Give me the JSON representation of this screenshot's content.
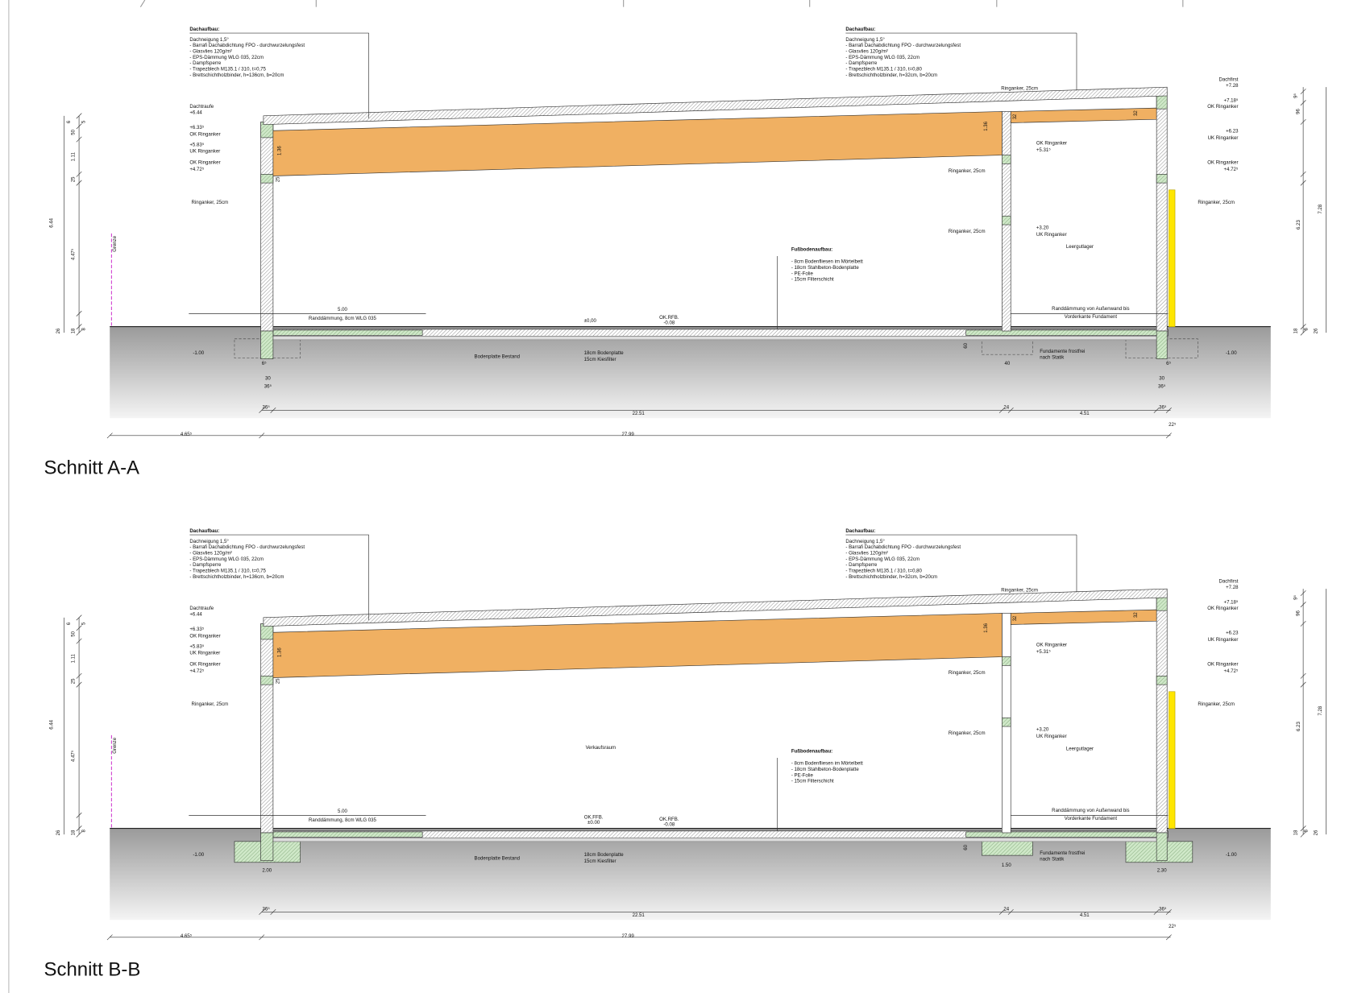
{
  "sections": [
    {
      "title": "Schnitt A-A",
      "roof_left": {
        "heading": "Dachaufbau:",
        "lines": [
          "Dachneigung 1,5°",
          "- Barrafi Dachabdichtung FPO - durchwurzelungsfest",
          "- Glasvlies 120g/m²",
          "- EPS-Dämmung WLG 035, 22cm",
          "- Dampfsperre",
          "- Trapezblech M135.1 / 310, t=0,75",
          "- Brettschichtholzbinder, h=136cm, b=20cm"
        ]
      },
      "roof_right": {
        "heading": "Dachaufbau:",
        "lines": [
          "Dachneigung 1,5°",
          "- Barrafi Dachabdichtung FPO - durchwurzelungsfest",
          "- Glasvlies 120g/m²",
          "- EPS-Dämmung WLG 035, 22cm",
          "- Dampfsperre",
          "- Trapezblech M135.1 / 310, t=0,80",
          "- Brettschichtholzbinder, h=32cm, b=20cm"
        ]
      },
      "floor": {
        "heading": "Fußbodenaufbau:",
        "lines": [
          "- 8cm Bodenfliesen im Mörtelbett",
          "- 18cm Stahlbeton-Bodenplatte",
          "- PE-Folie",
          "- 15cm Filterschicht"
        ]
      },
      "labels": [
        "Dachtraufe",
        "+6.44",
        "+6.33⁵",
        "OK Ringanker",
        "+5.83⁵",
        "UK Ringanker",
        "OK Ringanker",
        "+4.72⁵",
        "Ringanker, 25cm",
        "Grenze",
        "6",
        "50",
        "5",
        "1.11",
        "25",
        "6.44",
        "4.47⁵",
        "26",
        "18",
        "8",
        "1.36",
        "25",
        "Ringanker, 25cm",
        "32",
        "32",
        "1.36",
        "OK Ringanker",
        "+5.31⁵",
        "Ringanker, 25cm",
        "Ringanker, 25cm",
        "+3.20",
        "UK Ringanker",
        "Leergutlager",
        "Dachfirst",
        "+7.28",
        "+7.18⁵",
        "OK Ringanker",
        "+6.23",
        "UK Ringanker",
        "OK Ringanker",
        "+4.72⁵",
        "Ringanker, 25cm",
        "9⁵",
        "96",
        "6.23",
        "7.28",
        "18",
        "8",
        "26",
        "5.00",
        "Randdämmung, 8cm WLG 035",
        "OK.RFB.",
        "-0.08",
        "Randdämmung von Außenwand bis",
        "Vorderkante Fundament",
        "-1.00",
        "-1.00",
        "Bodenplatte Bestand",
        "18cm Bodenplatte",
        "15cm Kiesfilter",
        "Fundamente frostfrei",
        "nach Statik",
        "60",
        "36⁵",
        "22.51",
        "24",
        "4.51",
        "36⁵",
        "22⁵",
        "4.65⁵",
        "27.99"
      ],
      "extra_labels": [
        "±0,00",
        "40",
        "6⁵",
        "30",
        "36⁵",
        "6⁵",
        "30",
        "36⁵"
      ]
    },
    {
      "title": "Schnitt B-B",
      "roof_left": {
        "heading": "Dachaufbau:",
        "lines": [
          "Dachneigung 1,5°",
          "- Barrafi Dachabdichtung FPO - durchwurzelungsfest",
          "- Glasvlies 120g/m²",
          "- EPS-Dämmung WLG 035, 22cm",
          "- Dampfsperre",
          "- Trapezblech M135.1 / 310, t=0,75",
          "- Brettschichtholzbinder, h=136cm, b=20cm"
        ]
      },
      "roof_right": {
        "heading": "Dachaufbau:",
        "lines": [
          "Dachneigung 1,5°",
          "- Barrafi Dachabdichtung FPO - durchwurzelungsfest",
          "- Glasvlies 120g/m²",
          "- EPS-Dämmung WLG 035, 22cm",
          "- Dampfsperre",
          "- Trapezblech M135.1 / 310, t=0,80",
          "- Brettschichtholzbinder, h=32cm, b=20cm"
        ]
      },
      "floor": {
        "heading": "Fußbodenaufbau:",
        "lines": [
          "- 8cm Bodenfliesen im Mörtelbett",
          "- 18cm Stahlbeton-Bodenplatte",
          "- PE-Folie",
          "- 15cm Filterschicht"
        ]
      },
      "labels": [
        "Dachtraufe",
        "+6.44",
        "+6.33⁵",
        "OK Ringanker",
        "+5.83⁵",
        "UK Ringanker",
        "OK Ringanker",
        "+4.72⁵",
        "Ringanker, 25cm",
        "Grenze",
        "6",
        "50",
        "5",
        "1.11",
        "25",
        "6.44",
        "4.47⁵",
        "26",
        "18",
        "8",
        "1.36",
        "25",
        "Ringanker, 25cm",
        "32",
        "32",
        "1.36",
        "OK Ringanker",
        "+5.31⁵",
        "Ringanker, 25cm",
        "Ringanker, 25cm",
        "+3.20",
        "UK Ringanker",
        "Leergutlager",
        "Dachfirst",
        "+7.28",
        "+7.18⁵",
        "OK Ringanker",
        "+6.23",
        "UK Ringanker",
        "OK Ringanker",
        "+4.72⁵",
        "Ringanker, 25cm",
        "9⁵",
        "96",
        "6.23",
        "7.28",
        "18",
        "8",
        "26",
        "5.00",
        "Randdämmung, 8cm WLG 035",
        "OK.RFB.",
        "-0.08",
        "Randdämmung von Außenwand bis",
        "Vorderkante Fundament",
        "-1.00",
        "-1.00",
        "Bodenplatte Bestand",
        "18cm Bodenplatte",
        "15cm Kiesfilter",
        "Fundamente frostfrei",
        "nach Statik",
        "60",
        "36⁵",
        "22.51",
        "24",
        "4.51",
        "36⁵",
        "22⁵",
        "4.65⁵",
        "27.99"
      ],
      "extra_labels": [
        "Verkaufsraum",
        "OK.FFB.",
        "±0.00",
        "2.00",
        "1.50",
        "2.30"
      ]
    }
  ]
}
